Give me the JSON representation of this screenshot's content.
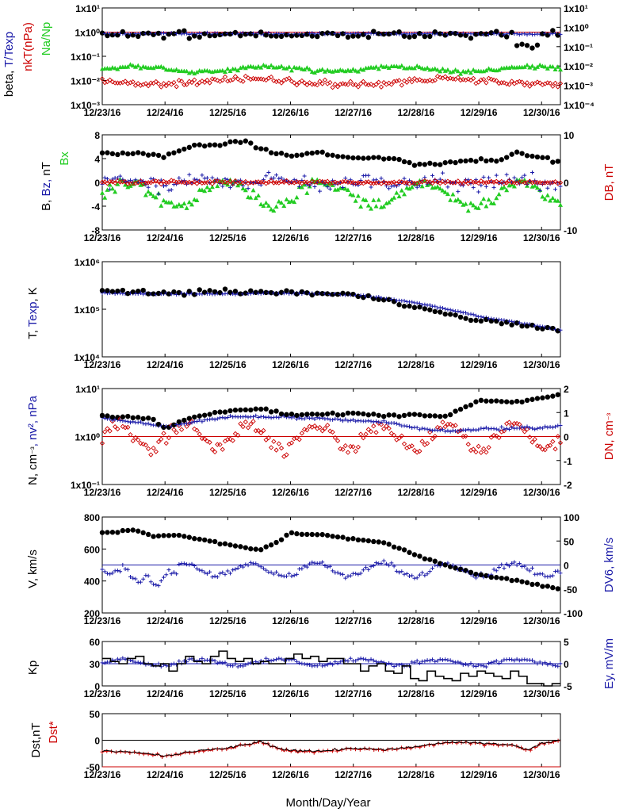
{
  "chart_data": {
    "type": "scatter",
    "xlabel": "Month/Day/Year",
    "x_ticks": [
      "12/23/16",
      "12/24/16",
      "12/25/16",
      "12/26/16",
      "12/27/16",
      "12/28/16",
      "12/29/16",
      "12/30/16"
    ],
    "x_range_days": [
      0,
      7.3
    ],
    "panels": [
      {
        "id": "beta",
        "ylabel_left": [
          {
            "text": "beta, ",
            "color": "#000000"
          },
          {
            "text": "T/Texp",
            "color": "#1a1aa8"
          }
        ],
        "ylabel_left2": [
          {
            "text": "nkT(nPa)",
            "color": "#cc0000"
          }
        ],
        "ylabel_left3": [
          {
            "text": "Na/Np",
            "color": "#22cc22"
          }
        ],
        "y_log": true,
        "y_ticks_left": [
          "1x10⁻³",
          "1x10⁻²",
          "1x10⁻¹",
          "1x10⁰",
          "1x10¹"
        ],
        "y_ticks_right": [
          "1x10⁻⁴",
          "1x10⁻³",
          "1x10⁻²",
          "1x10⁻¹",
          "1x10⁰",
          "1x10¹"
        ],
        "series": [
          {
            "name": "beta",
            "style": "dot",
            "color": "#000000",
            "base": 0.95,
            "amp": 0.35,
            "log": true
          },
          {
            "name": "T/Texp",
            "style": "plus",
            "color": "#1a1aa8",
            "base": 0.9,
            "amp": 0.15,
            "log": true
          },
          {
            "name": "nkT",
            "style": "diamond",
            "color": "#cc0000",
            "base": 0.009,
            "amp": 0.35,
            "log": true
          },
          {
            "name": "Na/Np",
            "style": "triangle",
            "color": "#22cc22",
            "base": 0.03,
            "amp": 0.2,
            "log": true
          }
        ],
        "ref_line": {
          "value": 1,
          "color": "#cc0000"
        }
      },
      {
        "id": "field",
        "ylabel_left": [
          {
            "text": "B, ",
            "color": "#000000"
          },
          {
            "text": "Bz, ",
            "color": "#1a1aa8"
          },
          {
            "text": "nT",
            "color": "#000000"
          }
        ],
        "ylabel_left2": [
          {
            "text": "Bx",
            "color": "#22cc22"
          }
        ],
        "ylabel_right": [
          {
            "text": "DB, nT",
            "color": "#cc0000"
          }
        ],
        "y_ticks_left": [
          "-8",
          "-4",
          "0",
          "4",
          "8"
        ],
        "y_ticks_right": [
          "-10",
          "0",
          "10"
        ],
        "ylim": [
          -8,
          8
        ],
        "B_profile": [
          [
            0,
            5
          ],
          [
            0.6,
            4.8
          ],
          [
            1,
            4.5
          ],
          [
            1.4,
            6
          ],
          [
            2,
            6.5
          ],
          [
            2.3,
            7
          ],
          [
            2.5,
            5.5
          ],
          [
            3,
            4.5
          ],
          [
            3.5,
            5
          ],
          [
            4,
            4
          ],
          [
            4.5,
            4.2
          ],
          [
            5,
            3
          ],
          [
            5.5,
            3.2
          ],
          [
            6,
            3.8
          ],
          [
            6.3,
            3.5
          ],
          [
            6.6,
            5
          ],
          [
            7,
            4
          ],
          [
            7.3,
            3.5
          ]
        ],
        "series": [
          {
            "name": "B",
            "style": "dot",
            "color": "#000000"
          },
          {
            "name": "Bz",
            "style": "plus",
            "color": "#1a1aa8"
          },
          {
            "name": "Bx",
            "style": "triangle",
            "color": "#22cc22"
          },
          {
            "name": "DB",
            "style": "diamond",
            "color": "#cc0000"
          }
        ],
        "ref_line": {
          "value": 0,
          "color": "#cc0000"
        }
      },
      {
        "id": "temp",
        "ylabel_left": [
          {
            "text": "T, ",
            "color": "#000000"
          },
          {
            "text": "Texp",
            "color": "#1a1aa8"
          },
          {
            "text": ", K",
            "color": "#000000"
          }
        ],
        "y_log": true,
        "y_ticks_left": [
          "1x10⁴",
          "1x10⁵",
          "1x10⁶"
        ],
        "T_profile": [
          [
            0,
            250000.0
          ],
          [
            1,
            220000.0
          ],
          [
            1.5,
            230000.0
          ],
          [
            2,
            240000.0
          ],
          [
            3,
            230000.0
          ],
          [
            3.5,
            220000.0
          ],
          [
            4,
            210000.0
          ],
          [
            4.5,
            160000.0
          ],
          [
            5,
            110000.0
          ],
          [
            5.5,
            80000.0
          ],
          [
            6,
            60000.0
          ],
          [
            6.5,
            50000.0
          ],
          [
            7,
            40000.0
          ],
          [
            7.3,
            36000.0
          ]
        ],
        "Texp_profile": [
          [
            0,
            220000.0
          ],
          [
            1,
            210000.0
          ],
          [
            2,
            210000.0
          ],
          [
            3,
            220000.0
          ],
          [
            4,
            200000.0
          ],
          [
            4.5,
            170000.0
          ],
          [
            5,
            135000.0
          ],
          [
            5.5,
            100000.0
          ],
          [
            6,
            70000.0
          ],
          [
            6.5,
            55000.0
          ],
          [
            7,
            43000.0
          ],
          [
            7.3,
            36000.0
          ]
        ],
        "series": [
          {
            "name": "T",
            "style": "dot",
            "color": "#000000"
          },
          {
            "name": "Texp",
            "style": "plus",
            "color": "#1a1aa8"
          }
        ]
      },
      {
        "id": "density",
        "ylabel_left": [
          {
            "text": "N, cm",
            "color": "#000000"
          },
          {
            "text": "⁻³",
            "color": "#000000"
          },
          {
            "text": ", nv",
            "color": "#1a1aa8"
          },
          {
            "text": "², nPa",
            "color": "#1a1aa8"
          }
        ],
        "ylabel_right": [
          {
            "text": "DN, cm",
            "color": "#cc0000"
          },
          {
            "text": "⁻³",
            "color": "#cc0000"
          }
        ],
        "y_log": true,
        "y_ticks_left": [
          "1x10⁻¹",
          "1x10⁰",
          "1x10¹"
        ],
        "y_ticks_right": [
          "-2",
          "-1",
          "0",
          "1",
          "2"
        ],
        "N_profile": [
          [
            0,
            2.7
          ],
          [
            0.8,
            2.3
          ],
          [
            1,
            1.5
          ],
          [
            1.3,
            2.2
          ],
          [
            2,
            3.5
          ],
          [
            2.5,
            3.8
          ],
          [
            3,
            2.8
          ],
          [
            4,
            3.0
          ],
          [
            4.5,
            2.6
          ],
          [
            5,
            3.0
          ],
          [
            5.5,
            2.5
          ],
          [
            6,
            5.5
          ],
          [
            6.5,
            5
          ],
          [
            7,
            6.2
          ],
          [
            7.3,
            8
          ]
        ],
        "nv2_profile": [
          [
            0,
            2.4
          ],
          [
            1,
            1.6
          ],
          [
            1.5,
            2.0
          ],
          [
            2,
            2.6
          ],
          [
            3,
            2.5
          ],
          [
            4,
            2.2
          ],
          [
            4.5,
            2.0
          ],
          [
            5,
            1.5
          ],
          [
            5.5,
            1.3
          ],
          [
            6,
            1.4
          ],
          [
            6.5,
            1.5
          ],
          [
            7,
            1.5
          ],
          [
            7.3,
            1.7
          ]
        ],
        "series": [
          {
            "name": "N",
            "style": "dot",
            "color": "#000000"
          },
          {
            "name": "nv²",
            "style": "plus",
            "color": "#1a1aa8"
          },
          {
            "name": "DN",
            "style": "diamond",
            "color": "#cc0000"
          }
        ],
        "ref_line": {
          "value": 1,
          "color": "#cc0000"
        }
      },
      {
        "id": "velocity",
        "ylabel_left": [
          {
            "text": "V, km/s",
            "color": "#000000"
          }
        ],
        "ylabel_right": [
          {
            "text": "DV6, km/s",
            "color": "#1a1aa8"
          }
        ],
        "y_ticks_left": [
          "200",
          "400",
          "600",
          "800"
        ],
        "y_ticks_right": [
          "-100",
          "-50",
          "0",
          "50",
          "100"
        ],
        "ylim": [
          200,
          800
        ],
        "V_profile": [
          [
            0,
            700
          ],
          [
            0.5,
            720
          ],
          [
            0.8,
            680
          ],
          [
            1.2,
            690
          ],
          [
            1.8,
            640
          ],
          [
            2.5,
            590
          ],
          [
            2.8,
            650
          ],
          [
            3,
            700
          ],
          [
            3.5,
            690
          ],
          [
            4,
            660
          ],
          [
            4.5,
            640
          ],
          [
            5,
            560
          ],
          [
            5.5,
            500
          ],
          [
            6,
            440
          ],
          [
            6.5,
            410
          ],
          [
            7,
            370
          ],
          [
            7.3,
            350
          ]
        ],
        "series": [
          {
            "name": "V",
            "style": "dot",
            "color": "#000000"
          },
          {
            "name": "DV6",
            "style": "plus",
            "color": "#1a1aa8"
          }
        ],
        "ref_line": {
          "value": 500,
          "color": "#1a1aa8"
        }
      },
      {
        "id": "kp",
        "ylabel_left": [
          {
            "text": "Kp",
            "color": "#000000"
          }
        ],
        "ylabel_right": [
          {
            "text": "Ey,  mV/m",
            "color": "#1a1aa8"
          }
        ],
        "y_ticks_left": [
          "0",
          "30",
          "60"
        ],
        "y_ticks_right": [
          "-5",
          "0",
          "5"
        ],
        "ylim": [
          0,
          60
        ],
        "Kp_steps": [
          37,
          33,
          30,
          37,
          40,
          30,
          27,
          30,
          20,
          30,
          40,
          33,
          30,
          40,
          47,
          37,
          33,
          37,
          30,
          33,
          30,
          30,
          37,
          43,
          37,
          40,
          33,
          37,
          37,
          30,
          30,
          20,
          27,
          30,
          20,
          17,
          27,
          10,
          7,
          20,
          13,
          10,
          7,
          17,
          13,
          20,
          17,
          13,
          10,
          20,
          13,
          3,
          3,
          0,
          3
        ],
        "series": [
          {
            "name": "Kp",
            "style": "step",
            "color": "#000000"
          },
          {
            "name": "Ey",
            "style": "plus",
            "color": "#1a1aa8"
          }
        ],
        "ref_line": {
          "value": 30,
          "color": "#1a1aa8"
        }
      },
      {
        "id": "dst",
        "ylabel_left": [
          {
            "text": "Dst,nT",
            "color": "#000000"
          }
        ],
        "ylabel_left2": [
          {
            "text": "Dst*",
            "color": "#cc0000"
          }
        ],
        "y_ticks_left": [
          "-50",
          "0",
          "50"
        ],
        "ylim": [
          -50,
          50
        ],
        "Dst_profile": [
          [
            0,
            -20
          ],
          [
            0.5,
            -22
          ],
          [
            1,
            -30
          ],
          [
            1.5,
            -20
          ],
          [
            2,
            -15
          ],
          [
            2.5,
            -3
          ],
          [
            2.8,
            -15
          ],
          [
            3,
            -20
          ],
          [
            3.5,
            -20
          ],
          [
            4,
            -15
          ],
          [
            4.5,
            -18
          ],
          [
            5,
            -12
          ],
          [
            5.5,
            -3
          ],
          [
            6,
            -5
          ],
          [
            6.5,
            -8
          ],
          [
            6.8,
            -18
          ],
          [
            7,
            -5
          ],
          [
            7.3,
            0
          ]
        ],
        "series": [
          {
            "name": "Dst",
            "style": "line",
            "color": "#000000"
          },
          {
            "name": "Dst*",
            "style": "plusline",
            "color": "#cc0000"
          }
        ],
        "ref_line": {
          "value": 0,
          "color": "#000000"
        }
      }
    ]
  }
}
